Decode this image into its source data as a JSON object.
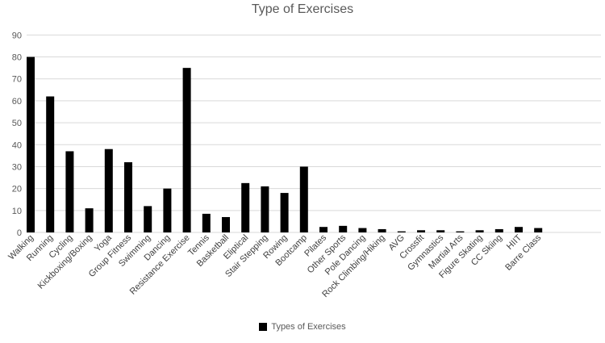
{
  "title": "Type of Exercises",
  "legend": {
    "label": "Types of Exercises",
    "swatch_color": "#000000"
  },
  "colors": {
    "bar": "#000000",
    "gridline": "#d9d9d9",
    "y_tick_text": "#595959",
    "x_tick_text": "#404040",
    "title_text": "#595959",
    "background": "#ffffff"
  },
  "chart_data": {
    "type": "bar",
    "title": "Type of Exercises",
    "xlabel": "",
    "ylabel": "",
    "ylim": [
      0,
      90
    ],
    "ytick_step": 10,
    "grid": true,
    "legend_entries": [
      "Types of Exercises"
    ],
    "legend_position": "bottom",
    "bar_color": "#000000",
    "categories": [
      "Walking",
      "Running",
      "Cycling",
      "Kickboxing/Boxing",
      "Yoga",
      "Group Fitness",
      "Swimming",
      "Dancing",
      "Resistance Exercise",
      "Tennis",
      "Basketball",
      "Eliptical",
      "Stair Stepping",
      "Rowing",
      "Bootcamp",
      "Pilates",
      "Other Sports",
      "Pole Dancing",
      "Rock Climbing/Hiking",
      "AVG",
      "Crossfit",
      "Gymnastics",
      "Martial Arts",
      "Figure Skating",
      "CC Skiing",
      "HIIT",
      "Barre Class"
    ],
    "values": [
      80,
      62,
      37,
      11,
      38,
      32,
      12,
      20,
      75,
      8.5,
      7,
      22.5,
      21,
      18,
      30,
      2.5,
      3,
      2,
      1.5,
      0.5,
      1,
      1,
      0.5,
      1,
      1.5,
      2.5,
      2
    ]
  }
}
